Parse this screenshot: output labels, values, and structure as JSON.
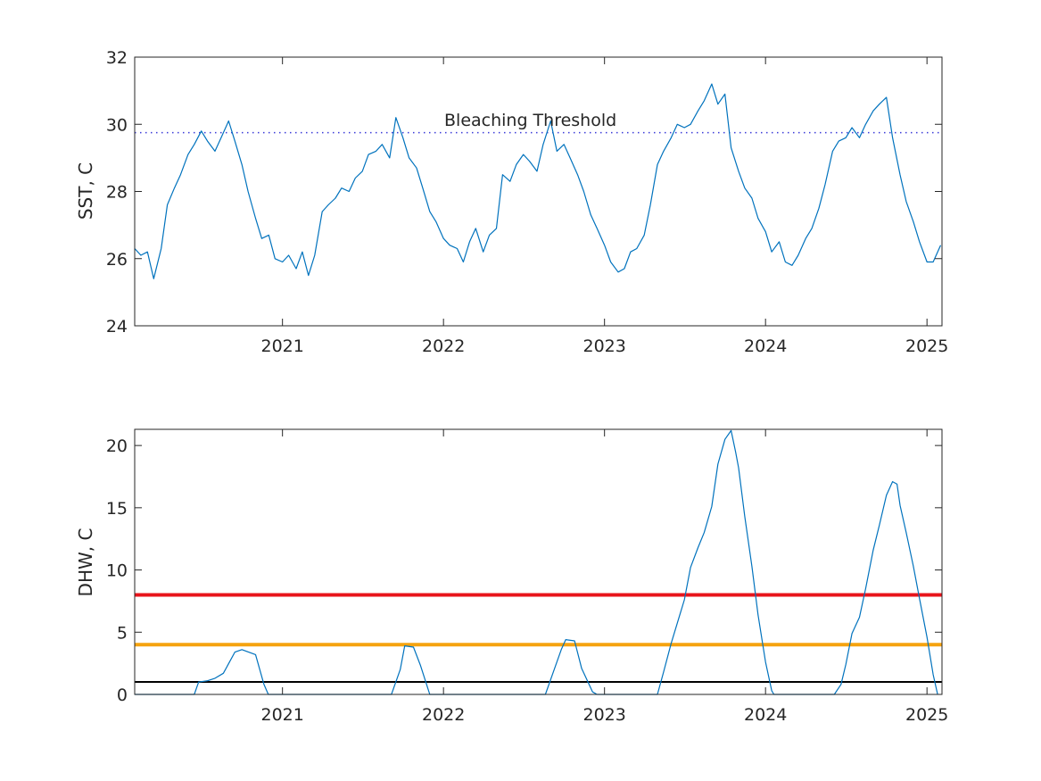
{
  "colors": {
    "line": "#0072BD",
    "threshold": "#3A3AD8",
    "red": "#E8141B",
    "orange": "#F5A30F",
    "black": "#000000",
    "axis": "#262626"
  },
  "chart_data": [
    {
      "type": "line",
      "ylabel": "SST, C",
      "xlim": [
        "2020-02-01",
        "2025-02-04"
      ],
      "ylim": [
        24,
        32
      ],
      "x_ticks": [
        "2021",
        "2022",
        "2023",
        "2024",
        "2025"
      ],
      "y_ticks": [
        "24",
        "26",
        "28",
        "30",
        "32"
      ],
      "annotation": "Bleaching Threshold",
      "threshold": 29.75,
      "grid": false,
      "series": [
        {
          "x": [
            "2020-02-01",
            "2020-02-15",
            "2020-03-01",
            "2020-03-15",
            "2020-04-01",
            "2020-04-15",
            "2020-05-01",
            "2020-05-15",
            "2020-06-01",
            "2020-06-15",
            "2020-07-01",
            "2020-07-15",
            "2020-08-01",
            "2020-08-15",
            "2020-09-01",
            "2020-09-15",
            "2020-10-01",
            "2020-10-15",
            "2020-11-01",
            "2020-11-15",
            "2020-12-01",
            "2020-12-15",
            "2021-01-01",
            "2021-01-15",
            "2021-02-01",
            "2021-02-15",
            "2021-03-01",
            "2021-03-15",
            "2021-04-01",
            "2021-04-15",
            "2021-05-01",
            "2021-05-15",
            "2021-06-01",
            "2021-06-15",
            "2021-07-01",
            "2021-07-15",
            "2021-08-01",
            "2021-08-15",
            "2021-09-01",
            "2021-09-15",
            "2021-10-01",
            "2021-10-15",
            "2021-11-01",
            "2021-11-15",
            "2021-12-01",
            "2021-12-15",
            "2022-01-01",
            "2022-01-15",
            "2022-02-01",
            "2022-02-15",
            "2022-03-01",
            "2022-03-15",
            "2022-04-01",
            "2022-04-15",
            "2022-05-01",
            "2022-05-15",
            "2022-06-01",
            "2022-06-15",
            "2022-07-01",
            "2022-07-15",
            "2022-08-01",
            "2022-08-15",
            "2022-09-01",
            "2022-09-15",
            "2022-10-01",
            "2022-10-15",
            "2022-11-01",
            "2022-11-15",
            "2022-12-01",
            "2022-12-15",
            "2023-01-01",
            "2023-01-15",
            "2023-02-01",
            "2023-02-15",
            "2023-03-01",
            "2023-03-15",
            "2023-04-01",
            "2023-04-15",
            "2023-05-01",
            "2023-05-15",
            "2023-06-01",
            "2023-06-15",
            "2023-07-01",
            "2023-07-15",
            "2023-08-01",
            "2023-08-15",
            "2023-09-01",
            "2023-09-15",
            "2023-10-01",
            "2023-10-15",
            "2023-11-01",
            "2023-11-15",
            "2023-12-01",
            "2023-12-15",
            "2024-01-01",
            "2024-01-15",
            "2024-02-01",
            "2024-02-15",
            "2024-03-01",
            "2024-03-15",
            "2024-04-01",
            "2024-04-15",
            "2024-05-01",
            "2024-05-15",
            "2024-06-01",
            "2024-06-15",
            "2024-07-01",
            "2024-07-15",
            "2024-08-01",
            "2024-08-15",
            "2024-09-01",
            "2024-09-15",
            "2024-10-01",
            "2024-10-15",
            "2024-11-01",
            "2024-11-15",
            "2024-12-01",
            "2024-12-15",
            "2025-01-01",
            "2025-01-15",
            "2025-02-01"
          ],
          "values": [
            26.3,
            26.1,
            26.2,
            25.4,
            26.3,
            27.6,
            28.1,
            28.5,
            29.1,
            29.4,
            29.8,
            29.5,
            29.2,
            29.6,
            30.1,
            29.5,
            28.8,
            28.0,
            27.2,
            26.6,
            26.7,
            26.0,
            25.9,
            26.1,
            25.7,
            26.2,
            25.5,
            26.1,
            27.4,
            27.6,
            27.8,
            28.1,
            28.0,
            28.4,
            28.6,
            29.1,
            29.2,
            29.4,
            29.0,
            30.2,
            29.6,
            29.0,
            28.7,
            28.1,
            27.4,
            27.1,
            26.6,
            26.4,
            26.3,
            25.9,
            26.5,
            26.9,
            26.2,
            26.7,
            26.9,
            28.5,
            28.3,
            28.8,
            29.1,
            28.9,
            28.6,
            29.4,
            30.1,
            29.2,
            29.4,
            29.0,
            28.5,
            28.0,
            27.3,
            26.9,
            26.4,
            25.9,
            25.6,
            25.7,
            26.2,
            26.3,
            26.7,
            27.6,
            28.8,
            29.2,
            29.6,
            30.0,
            29.9,
            30.0,
            30.4,
            30.7,
            31.2,
            30.6,
            30.9,
            29.3,
            28.6,
            28.1,
            27.8,
            27.2,
            26.8,
            26.2,
            26.5,
            25.9,
            25.8,
            26.1,
            26.6,
            26.9,
            27.5,
            28.2,
            29.2,
            29.5,
            29.6,
            29.9,
            29.6,
            30.0,
            30.4,
            30.6,
            30.8,
            29.6,
            28.5,
            27.7,
            27.1,
            26.5,
            25.9,
            25.9,
            26.4
          ]
        }
      ]
    },
    {
      "type": "line",
      "ylabel": "DHW, C",
      "xlim": [
        "2020-02-01",
        "2025-02-04"
      ],
      "ylim": [
        0,
        21.3
      ],
      "x_ticks": [
        "2021",
        "2022",
        "2023",
        "2024",
        "2025"
      ],
      "y_ticks": [
        "0",
        "5",
        "10",
        "15",
        "20"
      ],
      "reference_lines": [
        1,
        4,
        8
      ],
      "grid": false,
      "series": [
        {
          "x": [
            "2020-02-01",
            "2020-06-15",
            "2020-06-25",
            "2020-07-15",
            "2020-08-01",
            "2020-08-20",
            "2020-09-15",
            "2020-10-01",
            "2020-11-01",
            "2020-11-20",
            "2020-11-30",
            "2021-09-05",
            "2021-09-25",
            "2021-10-05",
            "2021-10-25",
            "2021-11-10",
            "2021-12-01",
            "2022-08-20",
            "2022-09-05",
            "2022-09-25",
            "2022-10-05",
            "2022-10-25",
            "2022-11-10",
            "2022-12-05",
            "2022-12-15",
            "2023-05-01",
            "2023-05-15",
            "2023-06-01",
            "2023-07-01",
            "2023-07-15",
            "2023-08-01",
            "2023-08-15",
            "2023-09-01",
            "2023-09-15",
            "2023-10-01",
            "2023-10-15",
            "2023-10-25",
            "2023-11-01",
            "2023-11-15",
            "2023-12-01",
            "2023-12-15",
            "2024-01-01",
            "2024-01-15",
            "2024-01-20",
            "2024-06-05",
            "2024-06-20",
            "2024-07-01",
            "2024-07-15",
            "2024-08-01",
            "2024-08-15",
            "2024-09-01",
            "2024-09-15",
            "2024-10-01",
            "2024-10-15",
            "2024-10-25",
            "2024-11-01",
            "2024-11-15",
            "2024-12-01",
            "2024-12-15",
            "2025-01-01",
            "2025-01-15",
            "2025-01-25"
          ],
          "values": [
            0,
            0,
            1.0,
            1.1,
            1.3,
            1.7,
            3.4,
            3.6,
            3.2,
            0.8,
            0,
            0,
            2.0,
            3.9,
            3.8,
            2.3,
            0,
            0,
            1.6,
            3.6,
            4.4,
            4.3,
            2.1,
            0.2,
            0,
            0,
            1.8,
            4.1,
            7.6,
            10.2,
            11.8,
            13.0,
            15.1,
            18.5,
            20.5,
            21.2,
            19.5,
            18.2,
            14.3,
            10.3,
            6.4,
            2.6,
            0.3,
            0,
            0,
            0.8,
            2.4,
            4.9,
            6.2,
            8.5,
            11.6,
            13.6,
            16.0,
            17.1,
            16.9,
            15.2,
            13.0,
            10.3,
            7.7,
            4.6,
            1.6,
            0
          ]
        }
      ]
    }
  ]
}
